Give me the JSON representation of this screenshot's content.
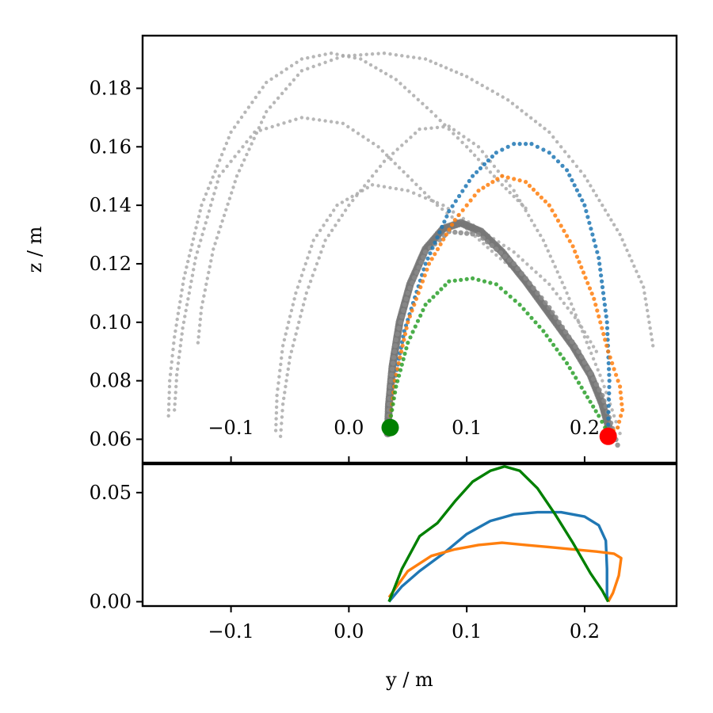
{
  "chart_data": [
    {
      "panel": "top",
      "type": "scatter",
      "title": "",
      "xlabel": "",
      "ylabel": "z / m",
      "xlim": [
        -0.175,
        0.278
      ],
      "ylim": [
        0.052,
        0.198
      ],
      "xticks": [
        -0.1,
        0.0,
        0.1,
        0.2
      ],
      "xtick_labels": [
        "−0.1",
        "0.0",
        "0.1",
        "0.2"
      ],
      "yticks": [
        0.06,
        0.08,
        0.1,
        0.12,
        0.14,
        0.16,
        0.18
      ],
      "ytick_labels": [
        "0.06",
        "0.08",
        "0.10",
        "0.12",
        "0.14",
        "0.16",
        "0.18"
      ],
      "grid": false,
      "series": [
        {
          "color": "#aaaaaa",
          "marker_size": 2.2,
          "points": [
            [
              -0.153,
              0.068
            ],
            [
              -0.152,
              0.08
            ],
            [
              -0.148,
              0.095
            ],
            [
              -0.14,
              0.115
            ],
            [
              -0.125,
              0.14
            ],
            [
              -0.1,
              0.165
            ],
            [
              -0.07,
              0.182
            ],
            [
              -0.04,
              0.19
            ],
            [
              -0.015,
              0.192
            ],
            [
              0.01,
              0.19
            ],
            [
              0.04,
              0.183
            ],
            [
              0.07,
              0.172
            ],
            [
              0.1,
              0.16
            ],
            [
              0.13,
              0.147
            ],
            [
              0.15,
              0.139
            ]
          ]
        },
        {
          "color": "#aaaaaa",
          "marker_size": 2.2,
          "points": [
            [
              -0.148,
              0.07
            ],
            [
              -0.146,
              0.082
            ],
            [
              -0.141,
              0.098
            ],
            [
              -0.13,
              0.122
            ],
            [
              -0.11,
              0.15
            ],
            [
              -0.08,
              0.165
            ],
            [
              -0.04,
              0.17
            ],
            [
              -0.005,
              0.168
            ],
            [
              0.025,
              0.16
            ],
            [
              0.05,
              0.15
            ],
            [
              0.075,
              0.14
            ],
            [
              0.1,
              0.132
            ],
            [
              0.125,
              0.123
            ],
            [
              0.14,
              0.118
            ]
          ]
        },
        {
          "color": "#aaaaaa",
          "marker_size": 2.2,
          "points": [
            [
              -0.128,
              0.093
            ],
            [
              -0.125,
              0.105
            ],
            [
              -0.115,
              0.125
            ],
            [
              -0.095,
              0.15
            ],
            [
              -0.07,
              0.172
            ],
            [
              -0.04,
              0.186
            ],
            [
              -0.005,
              0.191
            ],
            [
              0.03,
              0.192
            ],
            [
              0.065,
              0.19
            ],
            [
              0.1,
              0.184
            ],
            [
              0.135,
              0.176
            ],
            [
              0.17,
              0.165
            ],
            [
              0.2,
              0.15
            ],
            [
              0.23,
              0.13
            ],
            [
              0.25,
              0.112
            ],
            [
              0.258,
              0.092
            ]
          ]
        },
        {
          "color": "#aaaaaa",
          "marker_size": 2.2,
          "points": [
            [
              -0.062,
              0.063
            ],
            [
              -0.061,
              0.075
            ],
            [
              -0.056,
              0.092
            ],
            [
              -0.045,
              0.11
            ],
            [
              -0.03,
              0.128
            ],
            [
              -0.01,
              0.14
            ],
            [
              0.02,
              0.147
            ],
            [
              0.05,
              0.145
            ],
            [
              0.08,
              0.14
            ],
            [
              0.11,
              0.132
            ],
            [
              0.14,
              0.124
            ],
            [
              0.17,
              0.113
            ],
            [
              0.195,
              0.1
            ],
            [
              0.21,
              0.09
            ]
          ]
        },
        {
          "color": "#aaaaaa",
          "marker_size": 2.2,
          "points": [
            [
              -0.058,
              0.061
            ],
            [
              -0.056,
              0.072
            ],
            [
              -0.05,
              0.088
            ],
            [
              -0.036,
              0.11
            ],
            [
              -0.02,
              0.128
            ],
            [
              0.0,
              0.14
            ],
            [
              0.03,
              0.155
            ],
            [
              0.06,
              0.166
            ],
            [
              0.085,
              0.167
            ],
            [
              0.11,
              0.16
            ],
            [
              0.14,
              0.145
            ],
            [
              0.165,
              0.128
            ],
            [
              0.185,
              0.11
            ],
            [
              0.2,
              0.095
            ],
            [
              0.215,
              0.08
            ],
            [
              0.23,
              0.062
            ]
          ]
        },
        {
          "color": "#777777",
          "marker_size": 5.0,
          "points": [
            [
              0.033,
              0.062
            ],
            [
              0.034,
              0.072
            ],
            [
              0.037,
              0.085
            ],
            [
              0.043,
              0.1
            ],
            [
              0.052,
              0.113
            ],
            [
              0.065,
              0.125
            ],
            [
              0.08,
              0.132
            ],
            [
              0.095,
              0.134
            ],
            [
              0.112,
              0.131
            ],
            [
              0.13,
              0.124
            ],
            [
              0.15,
              0.114
            ],
            [
              0.17,
              0.103
            ],
            [
              0.19,
              0.092
            ],
            [
              0.205,
              0.082
            ],
            [
              0.215,
              0.072
            ],
            [
              0.222,
              0.062
            ]
          ]
        },
        {
          "color": "#888888",
          "marker_size": 3.2,
          "points": [
            [
              0.033,
              0.062
            ],
            [
              0.035,
              0.078
            ],
            [
              0.04,
              0.094
            ],
            [
              0.05,
              0.11
            ],
            [
              0.065,
              0.124
            ],
            [
              0.085,
              0.131
            ],
            [
              0.11,
              0.13
            ],
            [
              0.14,
              0.12
            ],
            [
              0.17,
              0.105
            ],
            [
              0.195,
              0.09
            ],
            [
              0.215,
              0.075
            ],
            [
              0.228,
              0.058
            ]
          ]
        },
        {
          "color": "#1f77b4",
          "marker_size": 2.6,
          "points": [
            [
              0.034,
              0.064
            ],
            [
              0.038,
              0.078
            ],
            [
              0.047,
              0.097
            ],
            [
              0.065,
              0.12
            ],
            [
              0.085,
              0.138
            ],
            [
              0.105,
              0.15
            ],
            [
              0.125,
              0.158
            ],
            [
              0.14,
              0.161
            ],
            [
              0.155,
              0.161
            ],
            [
              0.17,
              0.158
            ],
            [
              0.185,
              0.152
            ],
            [
              0.2,
              0.14
            ],
            [
              0.212,
              0.122
            ],
            [
              0.219,
              0.1
            ],
            [
              0.221,
              0.08
            ],
            [
              0.22,
              0.065
            ]
          ]
        },
        {
          "color": "#ff7f0e",
          "marker_size": 2.6,
          "points": [
            [
              0.034,
              0.064
            ],
            [
              0.039,
              0.08
            ],
            [
              0.05,
              0.1
            ],
            [
              0.068,
              0.12
            ],
            [
              0.09,
              0.135
            ],
            [
              0.11,
              0.145
            ],
            [
              0.13,
              0.15
            ],
            [
              0.15,
              0.148
            ],
            [
              0.17,
              0.14
            ],
            [
              0.19,
              0.126
            ],
            [
              0.208,
              0.108
            ],
            [
              0.22,
              0.09
            ],
            [
              0.23,
              0.078
            ],
            [
              0.232,
              0.07
            ],
            [
              0.228,
              0.064
            ],
            [
              0.221,
              0.062
            ]
          ]
        },
        {
          "color": "#2ca02c",
          "marker_size": 2.6,
          "points": [
            [
              0.034,
              0.064
            ],
            [
              0.04,
              0.078
            ],
            [
              0.05,
              0.093
            ],
            [
              0.065,
              0.106
            ],
            [
              0.085,
              0.114
            ],
            [
              0.105,
              0.115
            ],
            [
              0.125,
              0.113
            ],
            [
              0.145,
              0.106
            ],
            [
              0.165,
              0.097
            ],
            [
              0.185,
              0.086
            ],
            [
              0.2,
              0.076
            ],
            [
              0.212,
              0.068
            ],
            [
              0.22,
              0.062
            ]
          ]
        }
      ],
      "markers": [
        {
          "name": "start",
          "color": "#008000",
          "x": 0.035,
          "y": 0.064
        },
        {
          "name": "end",
          "color": "#ff0000",
          "x": 0.22,
          "y": 0.061
        }
      ]
    },
    {
      "panel": "bottom",
      "type": "line",
      "title": "",
      "xlabel": "y / m",
      "ylabel": "",
      "xlim": [
        -0.175,
        0.278
      ],
      "ylim": [
        -0.002,
        0.063
      ],
      "xticks": [
        -0.1,
        0.0,
        0.1,
        0.2
      ],
      "xtick_labels": [
        "−0.1",
        "0.0",
        "0.1",
        "0.2"
      ],
      "yticks": [
        0.0,
        0.05
      ],
      "ytick_labels": [
        "0.00",
        "0.05"
      ],
      "grid": false,
      "series": [
        {
          "color": "#1f77b4",
          "points": [
            [
              0.034,
              0.0
            ],
            [
              0.045,
              0.007
            ],
            [
              0.06,
              0.014
            ],
            [
              0.08,
              0.022
            ],
            [
              0.1,
              0.031
            ],
            [
              0.12,
              0.037
            ],
            [
              0.14,
              0.04
            ],
            [
              0.16,
              0.041
            ],
            [
              0.18,
              0.041
            ],
            [
              0.2,
              0.039
            ],
            [
              0.212,
              0.035
            ],
            [
              0.218,
              0.028
            ],
            [
              0.219,
              0.015
            ],
            [
              0.219,
              0.003
            ],
            [
              0.22,
              0.0
            ]
          ]
        },
        {
          "color": "#ff7f0e",
          "points": [
            [
              0.034,
              0.002
            ],
            [
              0.05,
              0.014
            ],
            [
              0.07,
              0.021
            ],
            [
              0.09,
              0.024
            ],
            [
              0.11,
              0.026
            ],
            [
              0.13,
              0.027
            ],
            [
              0.15,
              0.026
            ],
            [
              0.17,
              0.025
            ],
            [
              0.19,
              0.024
            ],
            [
              0.21,
              0.023
            ],
            [
              0.225,
              0.022
            ],
            [
              0.231,
              0.02
            ],
            [
              0.229,
              0.012
            ],
            [
              0.224,
              0.004
            ],
            [
              0.22,
              0.0
            ]
          ]
        },
        {
          "color": "#008000",
          "points": [
            [
              0.034,
              0.0
            ],
            [
              0.045,
              0.015
            ],
            [
              0.06,
              0.03
            ],
            [
              0.075,
              0.036
            ],
            [
              0.09,
              0.046
            ],
            [
              0.105,
              0.055
            ],
            [
              0.12,
              0.06
            ],
            [
              0.132,
              0.062
            ],
            [
              0.145,
              0.06
            ],
            [
              0.16,
              0.052
            ],
            [
              0.175,
              0.04
            ],
            [
              0.19,
              0.027
            ],
            [
              0.205,
              0.013
            ],
            [
              0.215,
              0.005
            ],
            [
              0.22,
              0.0
            ]
          ]
        }
      ]
    }
  ]
}
